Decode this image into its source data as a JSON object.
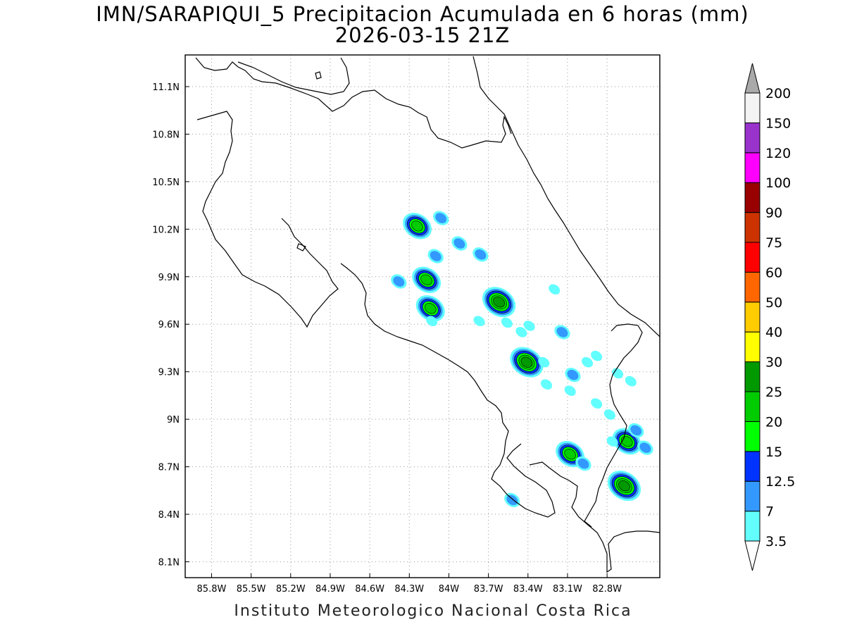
{
  "header": {
    "title": "IMN/SARAPIQUI_5 Precipitacion Acumulada en 6 horas (mm)",
    "subtitle": "2026-03-15 21Z"
  },
  "footer": {
    "credit": "Instituto Meteorologico Nacional Costa Rica"
  },
  "axes": {
    "lon_ticks": [
      "85.8W",
      "85.5W",
      "85.2W",
      "84.9W",
      "84.6W",
      "84.3W",
      "84W",
      "83.7W",
      "83.4W",
      "83.1W",
      "82.8W"
    ],
    "lon_values": [
      -85.8,
      -85.5,
      -85.2,
      -84.9,
      -84.6,
      -84.3,
      -84.0,
      -83.7,
      -83.4,
      -83.1,
      -82.8
    ],
    "lat_ticks": [
      "11.1N",
      "10.8N",
      "10.5N",
      "10.2N",
      "9.9N",
      "9.6N",
      "9.3N",
      "9N",
      "8.7N",
      "8.4N",
      "8.1N"
    ],
    "lat_values": [
      11.1,
      10.8,
      10.5,
      10.2,
      9.9,
      9.6,
      9.3,
      9.0,
      8.7,
      8.4,
      8.1
    ],
    "lon_range": [
      -86.0,
      -82.4
    ],
    "lat_range": [
      8.0,
      11.3
    ],
    "grid": "dotted"
  },
  "colorbar": {
    "labels": [
      "3.5",
      "7",
      "12.5",
      "15",
      "20",
      "25",
      "30",
      "40",
      "50",
      "60",
      "75",
      "90",
      "100",
      "120",
      "150",
      "200"
    ],
    "colors": [
      "#63ffff",
      "#3399ff",
      "#0033ff",
      "#00ff00",
      "#00cc00",
      "#009900",
      "#ffff00",
      "#ffcc00",
      "#ff6600",
      "#ff0000",
      "#cc3300",
      "#990000",
      "#ff00ff",
      "#9933cc",
      "#f3f3f3",
      "#a9a9a9"
    ]
  },
  "precip_cells": [
    {
      "lon": -84.24,
      "lat": 10.22,
      "mm": 22
    },
    {
      "lon": -84.06,
      "lat": 10.27,
      "mm": 7
    },
    {
      "lon": -84.1,
      "lat": 10.03,
      "mm": 9
    },
    {
      "lon": -83.92,
      "lat": 10.11,
      "mm": 9
    },
    {
      "lon": -83.76,
      "lat": 10.04,
      "mm": 9
    },
    {
      "lon": -84.17,
      "lat": 9.88,
      "mm": 22
    },
    {
      "lon": -84.38,
      "lat": 9.87,
      "mm": 7
    },
    {
      "lon": -84.14,
      "lat": 9.7,
      "mm": 20
    },
    {
      "lon": -84.13,
      "lat": 9.62,
      "mm": 4
    },
    {
      "lon": -83.62,
      "lat": 9.74,
      "mm": 25
    },
    {
      "lon": -83.56,
      "lat": 9.61,
      "mm": 6
    },
    {
      "lon": -83.77,
      "lat": 9.62,
      "mm": 4
    },
    {
      "lon": -83.45,
      "lat": 9.55,
      "mm": 6
    },
    {
      "lon": -83.39,
      "lat": 9.59,
      "mm": 4
    },
    {
      "lon": -83.2,
      "lat": 9.82,
      "mm": 6
    },
    {
      "lon": -83.14,
      "lat": 9.55,
      "mm": 8
    },
    {
      "lon": -83.41,
      "lat": 9.36,
      "mm": 25
    },
    {
      "lon": -83.28,
      "lat": 9.36,
      "mm": 5
    },
    {
      "lon": -83.26,
      "lat": 9.22,
      "mm": 6
    },
    {
      "lon": -83.06,
      "lat": 9.28,
      "mm": 7
    },
    {
      "lon": -83.08,
      "lat": 9.18,
      "mm": 4
    },
    {
      "lon": -82.95,
      "lat": 9.36,
      "mm": 6
    },
    {
      "lon": -82.88,
      "lat": 9.4,
      "mm": 4
    },
    {
      "lon": -82.72,
      "lat": 9.29,
      "mm": 5
    },
    {
      "lon": -82.62,
      "lat": 9.24,
      "mm": 6
    },
    {
      "lon": -82.88,
      "lat": 9.1,
      "mm": 4
    },
    {
      "lon": -82.78,
      "lat": 9.03,
      "mm": 4
    },
    {
      "lon": -82.65,
      "lat": 8.86,
      "mm": 20
    },
    {
      "lon": -82.58,
      "lat": 8.93,
      "mm": 7
    },
    {
      "lon": -82.51,
      "lat": 8.82,
      "mm": 12
    },
    {
      "lon": -82.76,
      "lat": 8.86,
      "mm": 4
    },
    {
      "lon": -83.08,
      "lat": 8.78,
      "mm": 22
    },
    {
      "lon": -82.98,
      "lat": 8.72,
      "mm": 12
    },
    {
      "lon": -82.67,
      "lat": 8.58,
      "mm": 25
    },
    {
      "lon": -83.52,
      "lat": 8.49,
      "mm": 12
    }
  ]
}
